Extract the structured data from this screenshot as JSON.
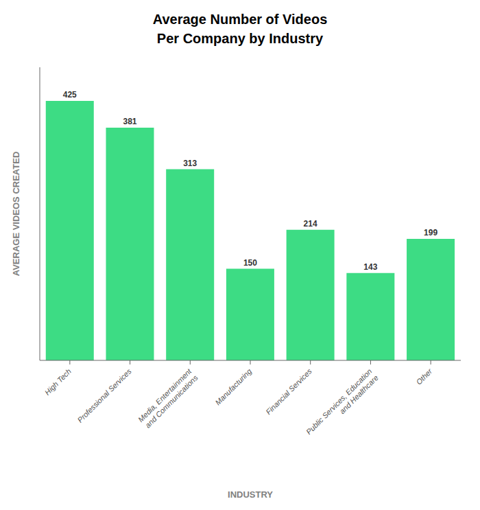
{
  "chart_data": {
    "type": "bar",
    "title": "Average Number of Videos\nPer Company by Industry",
    "xlabel": "INDUSTRY",
    "ylabel": "AVERAGE VIDEOS CREATED",
    "categories": [
      "High Tech",
      "Professional Services",
      "Media, Entertainment\nand Communications",
      "Manufacturing",
      "Financial Services",
      "Public Services, Education\nand Healthcare",
      "Other"
    ],
    "values": [
      425,
      381,
      313,
      150,
      214,
      143,
      199
    ],
    "color": "#3DDC84",
    "ylim": [
      0,
      480
    ],
    "data_labels": true,
    "tick_labels": "x",
    "grid": false
  }
}
